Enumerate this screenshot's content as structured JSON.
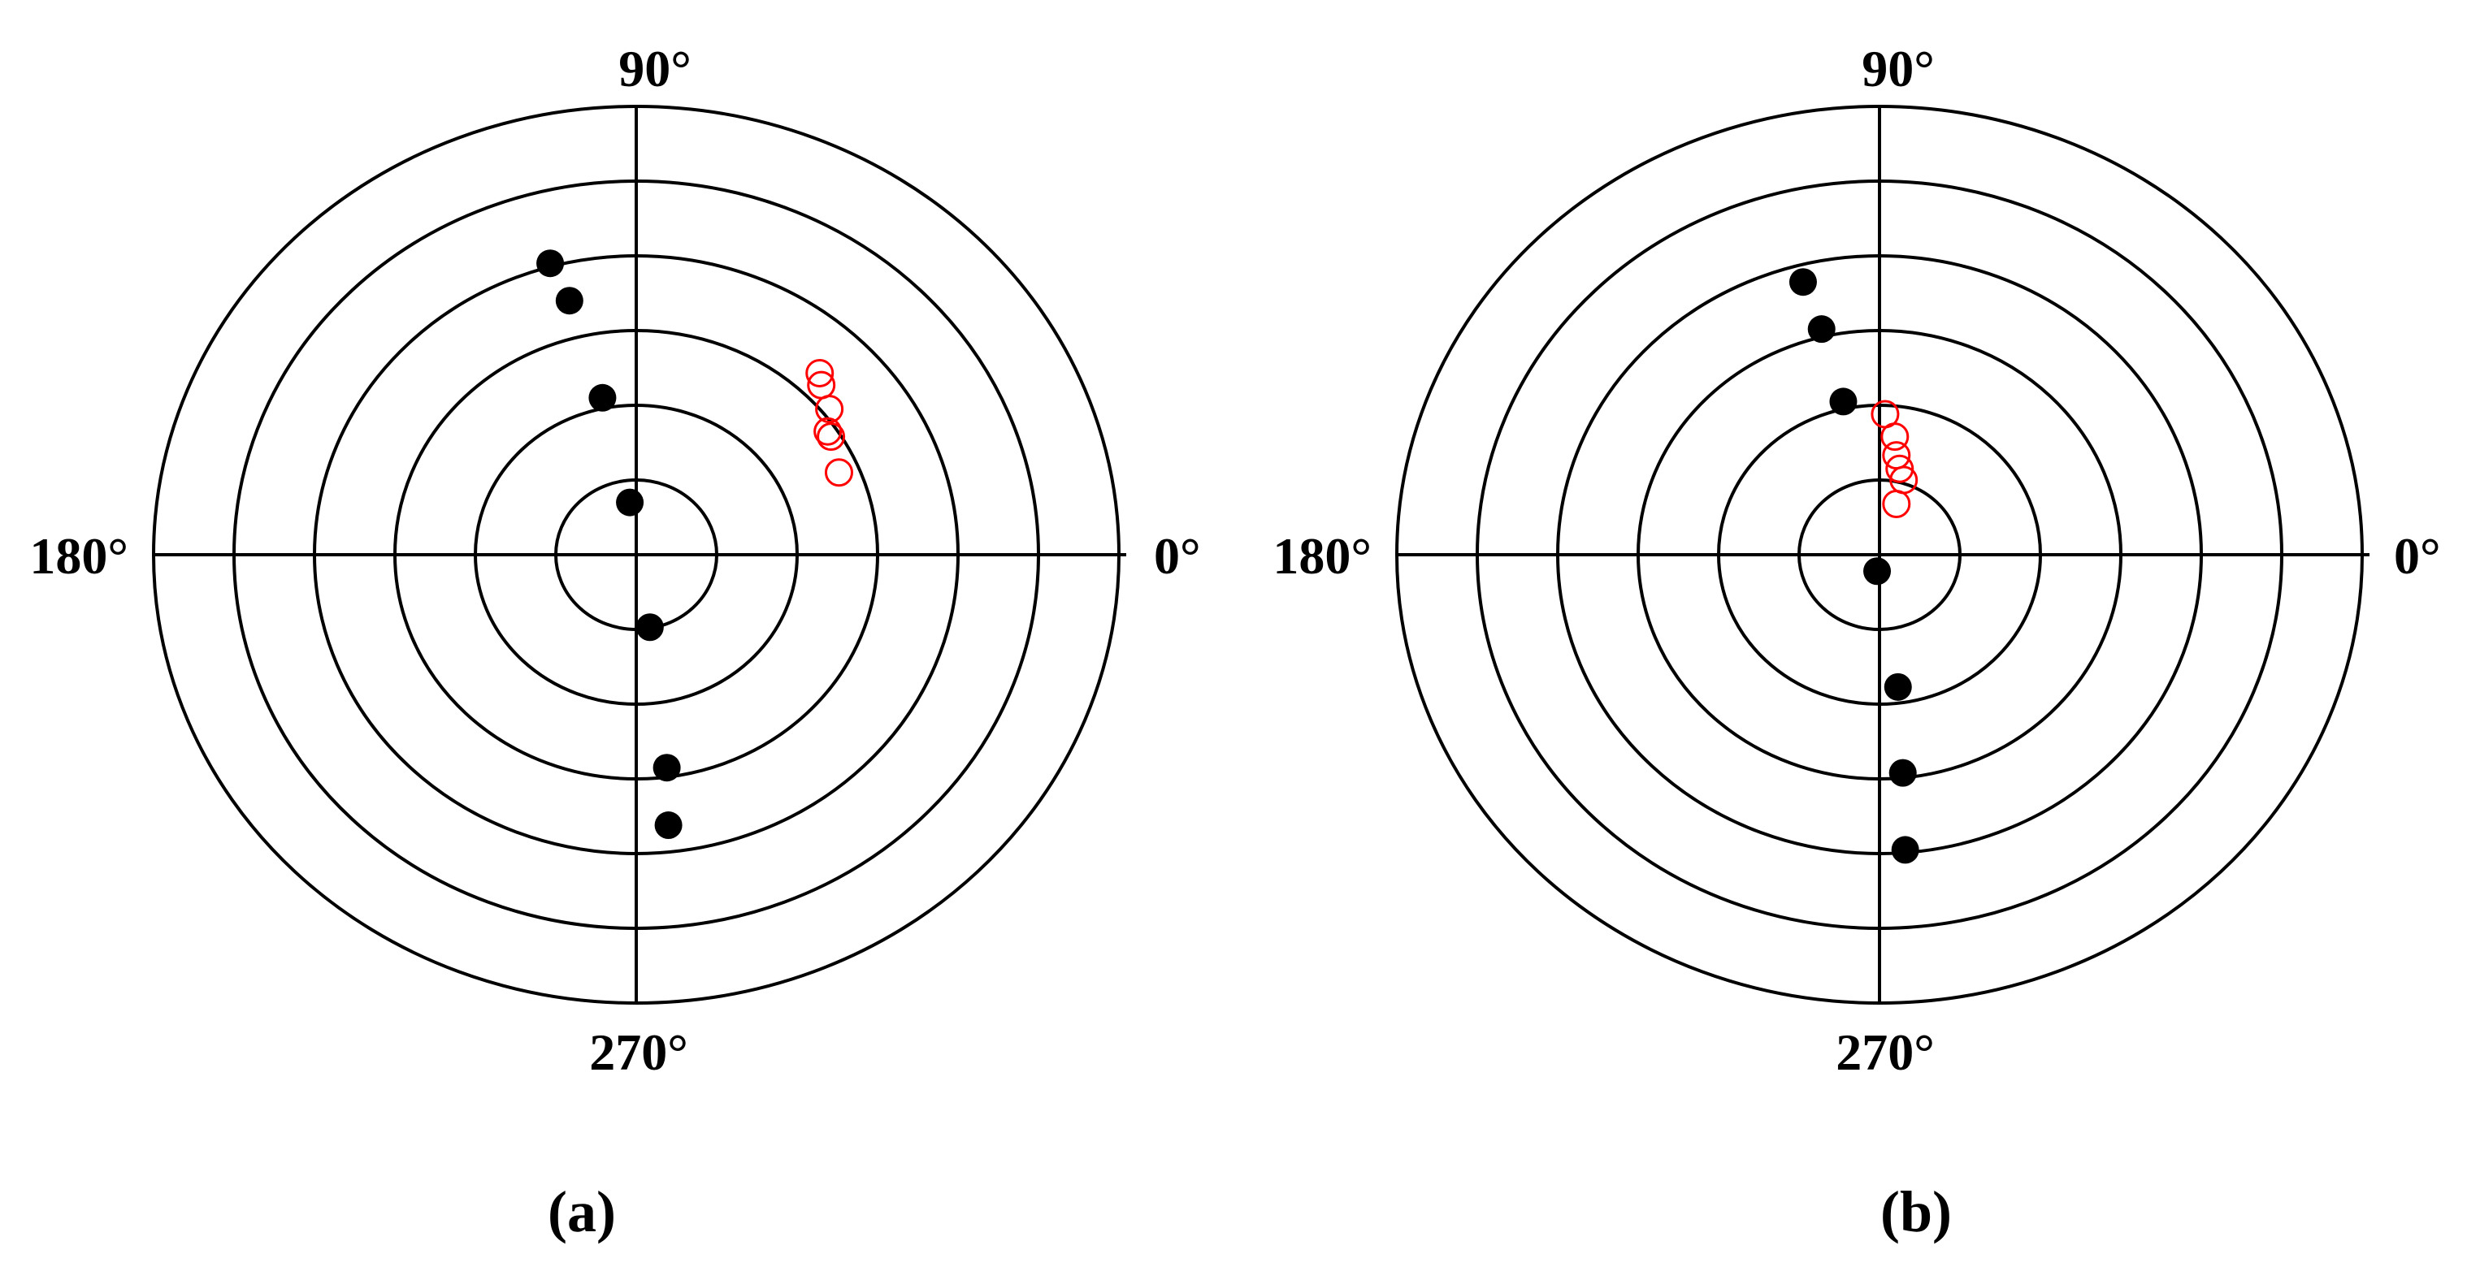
{
  "colors": {
    "axis": "#000000",
    "filled": "#000000",
    "open": "#ff0000"
  },
  "chart_data": [
    {
      "type": "scatter",
      "coordinates": "polar",
      "panel_label": "(a)",
      "angle_labels": {
        "deg0": "0°",
        "deg90": "90°",
        "deg180": "180°",
        "deg270": "270°"
      },
      "rings": 6,
      "grid": true,
      "series": [
        {
          "marker": "filled-circle",
          "color": "#000000",
          "points": [
            {
              "x": -1.07,
              "y": 3.9
            },
            {
              "x": -0.83,
              "y": 3.4
            },
            {
              "x": -0.42,
              "y": 2.1
            },
            {
              "x": -0.08,
              "y": 0.7
            },
            {
              "x": 0.17,
              "y": -0.97
            },
            {
              "x": 0.38,
              "y": -2.85
            },
            {
              "x": 0.4,
              "y": -3.62
            }
          ]
        },
        {
          "marker": "open-circle",
          "color": "#ff0000",
          "points": [
            {
              "x": 2.28,
              "y": 2.43
            },
            {
              "x": 2.3,
              "y": 2.27
            },
            {
              "x": 2.4,
              "y": 1.95
            },
            {
              "x": 2.38,
              "y": 1.65
            },
            {
              "x": 2.42,
              "y": 1.58
            },
            {
              "x": 2.52,
              "y": 1.1
            }
          ]
        }
      ]
    },
    {
      "type": "scatter",
      "coordinates": "polar",
      "panel_label": "(b)",
      "angle_labels": {
        "deg0": "0°",
        "deg90": "90°",
        "deg180": "180°",
        "deg270": "270°"
      },
      "rings": 6,
      "grid": true,
      "series": [
        {
          "marker": "filled-circle",
          "color": "#000000",
          "points": [
            {
              "x": -0.95,
              "y": 3.65
            },
            {
              "x": -0.72,
              "y": 3.02
            },
            {
              "x": -0.45,
              "y": 2.05
            },
            {
              "x": -0.03,
              "y": -0.22
            },
            {
              "x": 0.23,
              "y": -1.77
            },
            {
              "x": 0.29,
              "y": -2.92
            },
            {
              "x": 0.32,
              "y": -3.95
            }
          ]
        },
        {
          "marker": "open-circle",
          "color": "#ff0000",
          "points": [
            {
              "x": 0.07,
              "y": 1.88
            },
            {
              "x": 0.19,
              "y": 1.58
            },
            {
              "x": 0.21,
              "y": 1.33
            },
            {
              "x": 0.25,
              "y": 1.15
            },
            {
              "x": 0.3,
              "y": 1.0
            },
            {
              "x": 0.21,
              "y": 0.68
            }
          ]
        }
      ]
    }
  ]
}
